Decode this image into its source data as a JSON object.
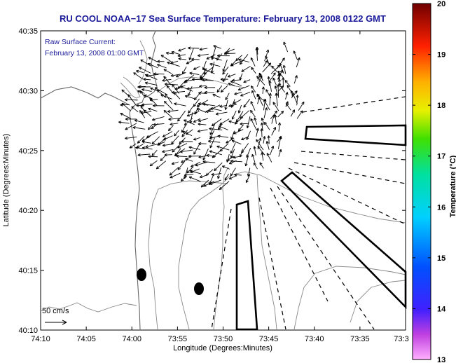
{
  "title": "RU COOL  NOAA−17  Sea Surface Temperature:  February 13, 2008 0122 GMT",
  "annotation": {
    "line1": "Raw Surface Current:",
    "line2": "February 13, 2008 01:00 GMT"
  },
  "scale_label": "50 cm/s",
  "xlabel": "Longitude (Degrees:Minutes)",
  "ylabel": "Latitude (Degrees:Minutes)",
  "x_ticks": [
    "74:10",
    "74:05",
    "74:00",
    "73:55",
    "73:50",
    "73:45",
    "73:40",
    "73:35",
    "73:3"
  ],
  "y_ticks": [
    "40:35",
    "40:30",
    "40:25",
    "40:20",
    "40:15",
    "40:10"
  ],
  "colorbar": {
    "label": "Temperature (°C)",
    "ticks": [
      "20",
      "19",
      "18",
      "17",
      "16",
      "15",
      "14",
      "13"
    ],
    "min": 13,
    "max": 20
  },
  "colors": {
    "title": "#1b1b9a",
    "contour": "#888888",
    "arrow": "#000000"
  },
  "chart_data": {
    "type": "map",
    "xlim": [
      -74.1667,
      -73.5
    ],
    "ylim": [
      40.1667,
      40.5833
    ],
    "current_field_region": {
      "lon": [
        -74.0,
        -73.7
      ],
      "lat": [
        40.375,
        40.55
      ]
    },
    "markers": [
      {
        "lon": -73.98,
        "lat": 40.245
      },
      {
        "lon": -73.87,
        "lat": 40.225
      }
    ]
  }
}
